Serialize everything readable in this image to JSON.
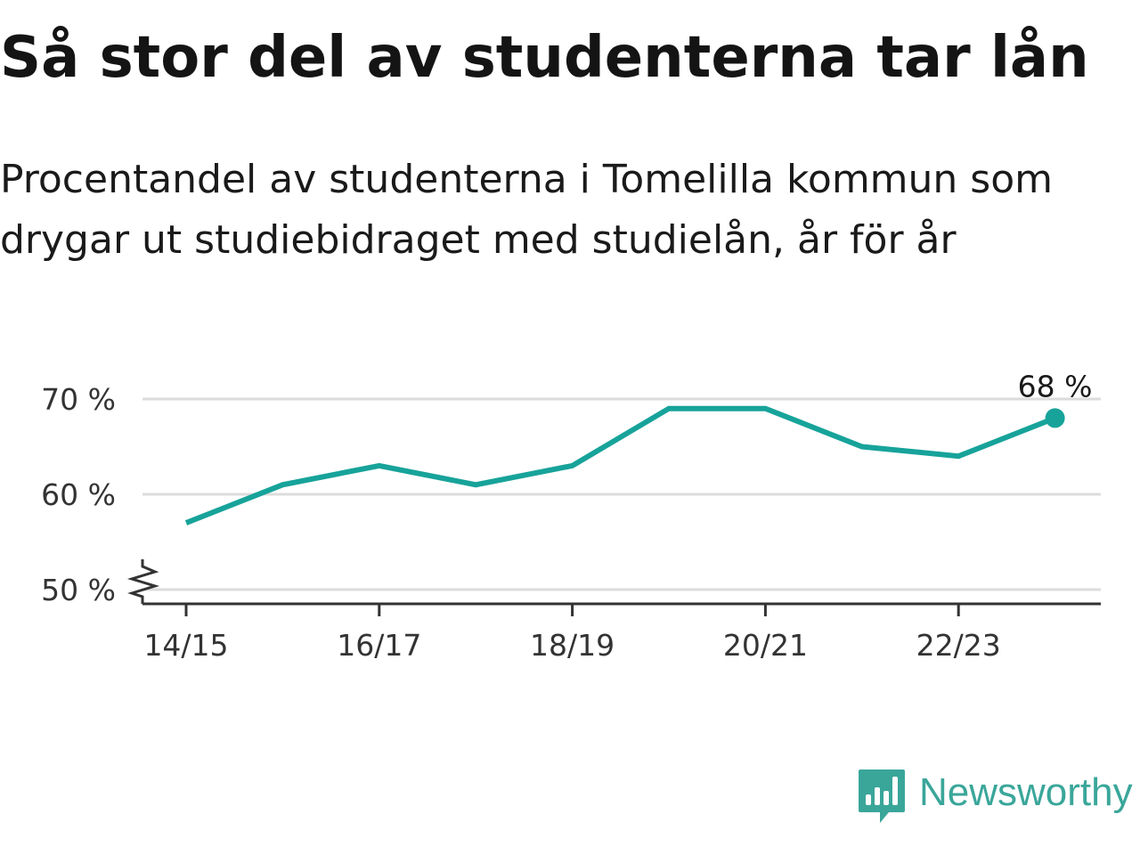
{
  "title": "Så stor del av studenterna tar lån",
  "subtitle": "Procentandel av studenterna i Tomelilla kommun som drygar ut studiebidraget med studielån, år för år",
  "brand": {
    "name": "Newsworthy",
    "color": "#3aa69a"
  },
  "chart_data": {
    "type": "line",
    "x": [
      "14/15",
      "15/16",
      "16/17",
      "17/18",
      "18/19",
      "19/20",
      "20/21",
      "21/22",
      "22/23",
      "23/24"
    ],
    "x_tick_labels": [
      "14/15",
      "16/17",
      "18/19",
      "20/21",
      "22/23"
    ],
    "series": [
      {
        "values": [
          57,
          61,
          63,
          61,
          63,
          69,
          69,
          65,
          64,
          68
        ],
        "color": "#17a39a"
      }
    ],
    "y_ticks": [
      50,
      60,
      70
    ],
    "y_tick_labels": [
      "50 %",
      "60 %",
      "70 %"
    ],
    "ylim": [
      50,
      72
    ],
    "y_axis_break": true,
    "end_label": "68 %",
    "grid": true,
    "legend": "none"
  }
}
